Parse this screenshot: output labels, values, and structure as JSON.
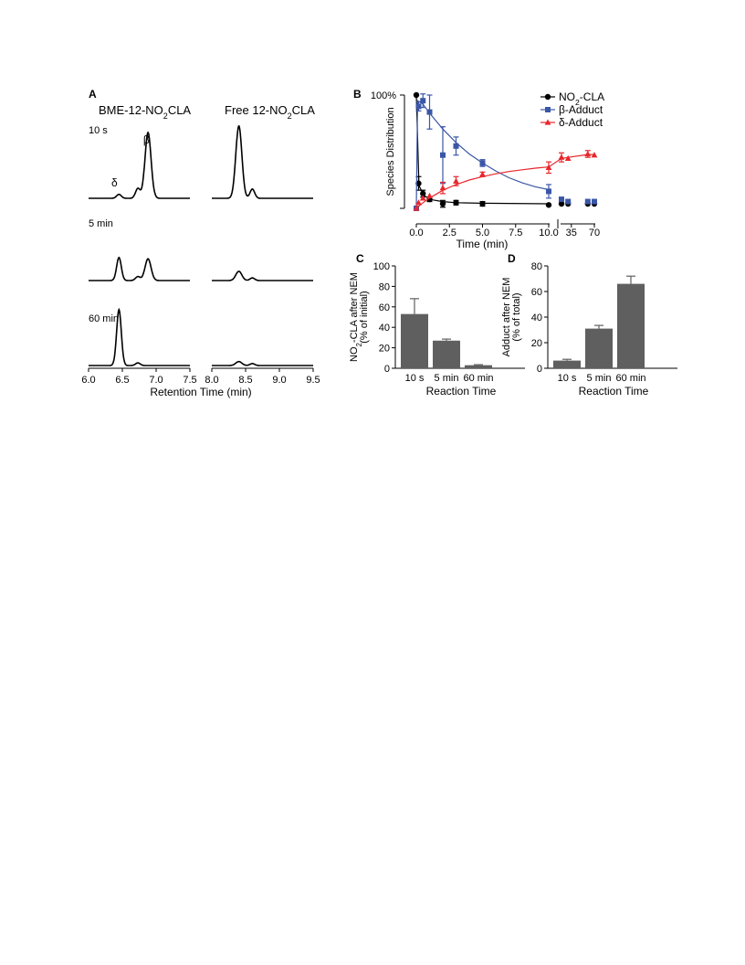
{
  "chart_data": [
    {
      "panel": "A",
      "type": "line",
      "column_titles": [
        {
          "prefix": "BME-12-NO",
          "sub": "2",
          "suffix": "CLA"
        },
        {
          "prefix": "Free 12-NO",
          "sub": "2",
          "suffix": "CLA"
        }
      ],
      "row_labels": [
        "10 s",
        "5 min",
        "60 min"
      ],
      "peak_labels": [
        {
          "text": "δ",
          "x": 6.45
        },
        {
          "text": "β",
          "x": 6.87
        }
      ],
      "xlabel": "Retention Time (min)",
      "left_xlim": [
        6.0,
        7.5
      ],
      "right_xlim": [
        8.0,
        9.5
      ],
      "left_xticks": [
        "6.0",
        "6.5",
        "7.0",
        "7.5"
      ],
      "right_xticks": [
        "8.0",
        "8.5",
        "9.0",
        "9.5"
      ],
      "left_peak_positions": [
        6.45,
        6.73,
        6.88
      ],
      "right_peak_positions": [
        8.4,
        8.6
      ],
      "left_peak_heights": [
        [
          0.06,
          0.15,
          1.0
        ],
        [
          0.35,
          0.06,
          0.33
        ],
        [
          0.85,
          0.04,
          0.0
        ]
      ],
      "right_peak_heights": [
        [
          1.1,
          0.14
        ],
        [
          0.14,
          0.04
        ],
        [
          0.06,
          0.03
        ]
      ]
    },
    {
      "panel": "B",
      "type": "scatter",
      "ylabel": "Species Distribution",
      "ytick_top": "100%",
      "xlabel": "Time (min)",
      "xticks_left": [
        "0.0",
        "2.5",
        "5.0",
        "7.5",
        "10.0"
      ],
      "xticks_right": [
        "35",
        "70"
      ],
      "legend_position": "top-right",
      "series": [
        {
          "name": "NO2-CLA",
          "label_prefix": "NO",
          "label_sub": "2",
          "label_suffix": "-CLA",
          "color": "#000000",
          "marker": "circle",
          "points": [
            [
              0.0,
              100
            ],
            [
              0.17,
              22
            ],
            [
              0.5,
              13
            ],
            [
              1.0,
              8
            ],
            [
              2.0,
              4
            ],
            [
              3.0,
              5
            ],
            [
              5.0,
              4
            ],
            [
              10.0,
              3
            ],
            [
              20,
              4
            ],
            [
              30,
              4
            ],
            [
              60,
              4
            ],
            [
              70,
              4
            ]
          ],
          "errors": [
            0,
            6,
            3,
            2,
            3,
            2,
            2,
            0,
            0,
            0,
            0,
            0
          ],
          "fit": [
            [
              0.0,
              100
            ],
            [
              0.2,
              20
            ],
            [
              0.6,
              11
            ],
            [
              1.2,
              7.5
            ],
            [
              2.0,
              6
            ],
            [
              3.0,
              5
            ],
            [
              5.0,
              4.5
            ],
            [
              10.0,
              4
            ]
          ]
        },
        {
          "name": "β-Adduct",
          "color": "#3a56a6",
          "marker": "square",
          "points": [
            [
              0.0,
              0
            ],
            [
              0.17,
              90
            ],
            [
              0.5,
              95
            ],
            [
              1.0,
              85
            ],
            [
              2.0,
              47
            ],
            [
              3.0,
              55
            ],
            [
              5.0,
              40
            ],
            [
              10.0,
              15
            ],
            [
              20,
              8
            ],
            [
              30,
              6
            ],
            [
              60,
              6
            ],
            [
              70,
              6
            ]
          ],
          "errors": [
            0,
            4,
            6,
            15,
            25,
            8,
            3,
            6,
            0,
            0,
            0,
            0
          ],
          "fit": [
            [
              0.0,
              0
            ],
            [
              0.1,
              95
            ],
            [
              0.5,
              92
            ],
            [
              1.0,
              84
            ],
            [
              2.0,
              70
            ],
            [
              3.0,
              58
            ],
            [
              4.0,
              48
            ],
            [
              5.0,
              40
            ],
            [
              6.0,
              33
            ],
            [
              7.0,
              27
            ],
            [
              8.0,
              22.5
            ],
            [
              9.0,
              19
            ],
            [
              10.0,
              16.5
            ]
          ]
        },
        {
          "name": "δ-Adduct",
          "color": "#e8262c",
          "marker": "triangle",
          "points": [
            [
              0.0,
              0
            ],
            [
              0.17,
              5
            ],
            [
              0.5,
              9
            ],
            [
              1.0,
              11
            ],
            [
              2.0,
              18
            ],
            [
              3.0,
              24
            ],
            [
              5.0,
              30
            ],
            [
              10.0,
              36
            ],
            [
              20,
              45
            ],
            [
              30,
              44
            ],
            [
              60,
              48
            ],
            [
              70,
              47
            ]
          ],
          "errors": [
            0,
            0,
            0,
            0,
            5,
            4,
            2,
            5,
            4,
            0,
            3,
            0
          ],
          "fit": [
            [
              0.0,
              0
            ],
            [
              0.5,
              5
            ],
            [
              1.0,
              9
            ],
            [
              2.0,
              16
            ],
            [
              3.0,
              21
            ],
            [
              4.0,
              25
            ],
            [
              5.0,
              28
            ],
            [
              6.0,
              30.5
            ],
            [
              7.0,
              32.5
            ],
            [
              8.0,
              34
            ],
            [
              9.0,
              35.5
            ],
            [
              10.0,
              36.5
            ],
            [
              20,
              44
            ],
            [
              30,
              45
            ],
            [
              60,
              47.5
            ],
            [
              70,
              47.5
            ]
          ]
        }
      ]
    },
    {
      "panel": "C",
      "type": "bar",
      "categories": [
        "10 s",
        "5 min",
        "60 min"
      ],
      "values": [
        53,
        27,
        3
      ],
      "errors": [
        15,
        1.5,
        0.5
      ],
      "ylabel_line1_prefix": "NO",
      "ylabel_line1_sub": "2",
      "ylabel_line1_suffix": "-CLA after NEM",
      "ylabel_line2": "(% of initial)",
      "xlabel": "Reaction Time",
      "ylim": [
        0,
        100
      ],
      "yticks": [
        "0",
        "20",
        "40",
        "60",
        "80",
        "100"
      ],
      "bar_color": "#5f5f5f"
    },
    {
      "panel": "D",
      "type": "bar",
      "categories": [
        "10 s",
        "5 min",
        "60 min"
      ],
      "values": [
        6,
        31,
        66
      ],
      "errors": [
        1,
        2.5,
        6
      ],
      "ylabel_line1": "Adduct after NEM",
      "ylabel_line2": "(% of total)",
      "xlabel": "Reaction Time",
      "ylim": [
        0,
        80
      ],
      "yticks": [
        "0",
        "20",
        "40",
        "60",
        "80"
      ],
      "bar_color": "#5f5f5f"
    }
  ]
}
